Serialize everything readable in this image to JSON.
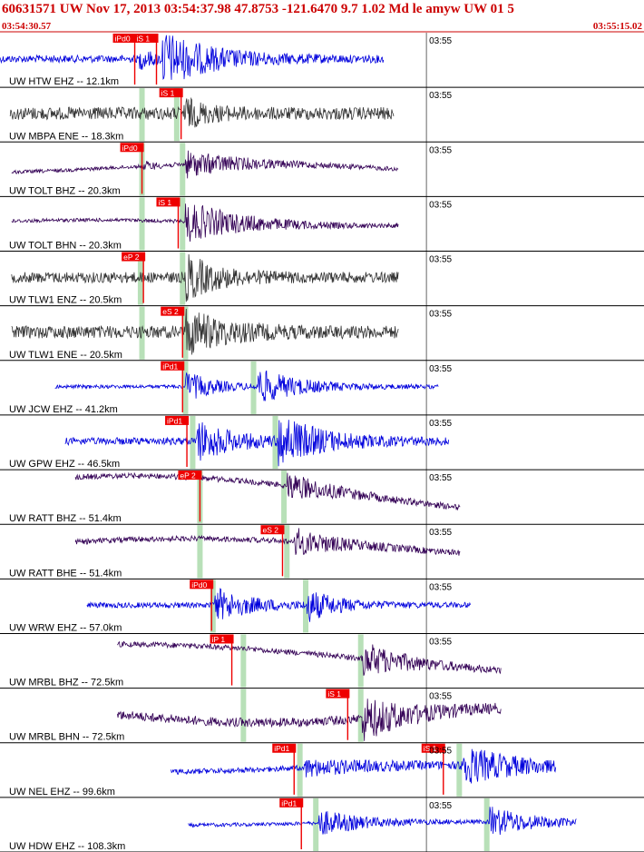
{
  "header": {
    "title": "60631571 UW Nov 17, 2013 03:54:37.98   47.8753 -121.6470  9.7 1.02 Md le amyw UW 01   5",
    "start_time": "03:54:30.57",
    "end_time": "03:55:15.02"
  },
  "colors": {
    "header": "#cc0000",
    "pick": "#ee0000",
    "pick_window": "#b8e0b8",
    "grid": "#000000"
  },
  "chart_data": {
    "type": "line",
    "title": "",
    "xlabel": "",
    "ylabel": "",
    "x_range_seconds": [
      0,
      44.45
    ],
    "x_tick": {
      "label": "03:55",
      "seconds": 29.43
    },
    "grid": true,
    "traces": [
      {
        "label": "UW HTW EHZ -- 12.1km",
        "color": "#0000dd",
        "amp": 4,
        "mod": 0,
        "pnoise": 0,
        "start": 0.0,
        "end": 26.5,
        "picks": [
          {
            "label": "iPd0",
            "t": 9.3
          },
          {
            "label": "iS 1",
            "t": 10.8
          }
        ],
        "green": [],
        "bursts": [
          {
            "t": 11.2,
            "a": 28,
            "d": 3.5
          },
          {
            "t": 9.6,
            "a": 10,
            "d": 1
          }
        ]
      },
      {
        "label": "UW MBPA ENE -- 18.3km",
        "color": "#333333",
        "amp": 7,
        "mod": 0,
        "pnoise": 0,
        "start": 0.7,
        "end": 27.2,
        "picks": [
          {
            "label": "iS 1",
            "t": 12.5
          }
        ],
        "green": [
          9.8,
          12.2
        ],
        "bursts": [
          {
            "t": 12.7,
            "a": 14,
            "d": 1.5
          }
        ]
      },
      {
        "label": "UW TOLT BHZ -- 20.3km",
        "color": "#330055",
        "amp": 2,
        "mod": 5,
        "pnoise": 3.2,
        "start": 0.8,
        "end": 27.5,
        "picks": [
          {
            "label": "iPd0",
            "t": 9.8
          }
        ],
        "green": [
          9.8,
          12.6
        ],
        "bursts": [
          {
            "t": 12.8,
            "a": 14,
            "d": 4
          },
          {
            "t": 9.9,
            "a": 5,
            "d": 1
          }
        ]
      },
      {
        "label": "UW TOLT BHN -- 20.3km",
        "color": "#330055",
        "amp": 2,
        "mod": 3,
        "pnoise": 3.2,
        "start": 0.8,
        "end": 27.5,
        "picks": [
          {
            "label": "iS 1",
            "t": 12.3
          }
        ],
        "green": [
          9.8,
          12.6
        ],
        "bursts": [
          {
            "t": 12.8,
            "a": 22,
            "d": 4
          }
        ]
      },
      {
        "label": "UW TLW1 ENZ -- 20.5km",
        "color": "#333333",
        "amp": 6,
        "mod": 0,
        "pnoise": 0,
        "start": 0.8,
        "end": 27.5,
        "picks": [
          {
            "label": "eP 2",
            "t": 9.9
          }
        ],
        "green": [
          9.7,
          12.6
        ],
        "bursts": [
          {
            "t": 12.8,
            "a": 24,
            "d": 2
          }
        ]
      },
      {
        "label": "UW TLW1 ENE -- 20.5km",
        "color": "#333333",
        "amp": 7,
        "mod": 0,
        "pnoise": 0,
        "start": 0.8,
        "end": 27.5,
        "picks": [
          {
            "label": "eS 2",
            "t": 12.6
          }
        ],
        "green": [
          9.8,
          12.8
        ],
        "bursts": [
          {
            "t": 12.8,
            "a": 24,
            "d": 2.5
          }
        ]
      },
      {
        "label": "UW JCW EHZ -- 41.2km",
        "color": "#0000dd",
        "amp": 2,
        "mod": 0,
        "pnoise": 0,
        "start": 3.8,
        "end": 30.3,
        "picks": [
          {
            "label": "iPd1",
            "t": 12.6
          }
        ],
        "green": [
          12.8,
          17.5
        ],
        "bursts": [
          {
            "t": 12.8,
            "a": 16,
            "d": 2
          },
          {
            "t": 17.8,
            "a": 18,
            "d": 3
          }
        ]
      },
      {
        "label": "UW GPW EHZ -- 46.5km",
        "color": "#0000dd",
        "amp": 4,
        "mod": 0,
        "pnoise": 0,
        "start": 4.5,
        "end": 31.0,
        "picks": [
          {
            "label": "iPd1",
            "t": 12.9
          }
        ],
        "green": [
          13.3,
          19.0
        ],
        "bursts": [
          {
            "t": 13.5,
            "a": 22,
            "d": 2.5
          },
          {
            "t": 19.2,
            "a": 26,
            "d": 3
          }
        ]
      },
      {
        "label": "UW RATT BHZ -- 51.4km",
        "color": "#330055",
        "amp": 3,
        "mod": 22,
        "pnoise": 5.5,
        "start": 5.2,
        "end": 31.8,
        "picks": [
          {
            "label": "eP 2",
            "t": 13.8
          }
        ],
        "green": [
          13.8,
          19.6
        ],
        "bursts": [
          {
            "t": 19.8,
            "a": 14,
            "d": 3
          }
        ]
      },
      {
        "label": "UW RATT BHE -- 51.4km",
        "color": "#330055",
        "amp": 3,
        "mod": 13,
        "pnoise": 5.5,
        "start": 5.2,
        "end": 31.8,
        "picks": [
          {
            "label": "eS 2",
            "t": 19.5
          }
        ],
        "green": [
          13.8,
          19.8
        ],
        "bursts": [
          {
            "t": 20.3,
            "a": 14,
            "d": 3
          }
        ]
      },
      {
        "label": "UW WRW EHZ -- 57.0km",
        "color": "#0000dd",
        "amp": 3,
        "mod": 0,
        "pnoise": 0,
        "start": 6.0,
        "end": 32.5,
        "picks": [
          {
            "label": "iPd0",
            "t": 14.6
          }
        ],
        "green": [
          14.7,
          21.1
        ],
        "bursts": [
          {
            "t": 14.8,
            "a": 18,
            "d": 2.5
          },
          {
            "t": 21.2,
            "a": 16,
            "d": 2
          }
        ]
      },
      {
        "label": "UW MRBL BHZ -- 72.5km",
        "color": "#330055",
        "amp": 3,
        "mod": 17,
        "pnoise": 6.2,
        "start": 8.1,
        "end": 34.6,
        "picks": [
          {
            "label": "iP 1",
            "t": 16.0
          }
        ],
        "green": [
          16.8,
          24.9
        ],
        "bursts": [
          {
            "t": 25.0,
            "a": 18,
            "d": 3
          }
        ]
      },
      {
        "label": "UW MRBL BHN -- 72.5km",
        "color": "#330055",
        "amp": 5,
        "mod": 9,
        "pnoise": 3.5,
        "start": 8.1,
        "end": 34.6,
        "picks": [
          {
            "label": "iS 1",
            "t": 24.0
          }
        ],
        "green": [
          16.8,
          24.9
        ],
        "bursts": [
          {
            "t": 25.0,
            "a": 22,
            "d": 3
          }
        ]
      },
      {
        "label": "UW NEL EHZ -- 99.6km",
        "color": "#0000dd",
        "amp": 3,
        "mod": 4,
        "pnoise": 4.0,
        "start": 11.8,
        "end": 38.4,
        "picks": [
          {
            "label": "iPd1",
            "t": 20.3
          },
          {
            "label": "iS 1",
            "t": 30.6
          }
        ],
        "green": [
          20.7,
          31.7
        ],
        "bursts": [
          {
            "t": 21.0,
            "a": 8,
            "d": 6
          },
          {
            "t": 31.8,
            "a": 20,
            "d": 4
          }
        ]
      },
      {
        "label": "UW HDW EHZ -- 108.3km",
        "color": "#0000dd",
        "amp": 2,
        "mod": 2,
        "pnoise": 4.0,
        "start": 13.0,
        "end": 39.8,
        "picks": [
          {
            "label": "iPd1",
            "t": 20.8
          }
        ],
        "green": [
          21.8,
          33.6
        ],
        "bursts": [
          {
            "t": 22.0,
            "a": 14,
            "d": 3
          },
          {
            "t": 33.8,
            "a": 16,
            "d": 3
          }
        ]
      }
    ]
  }
}
